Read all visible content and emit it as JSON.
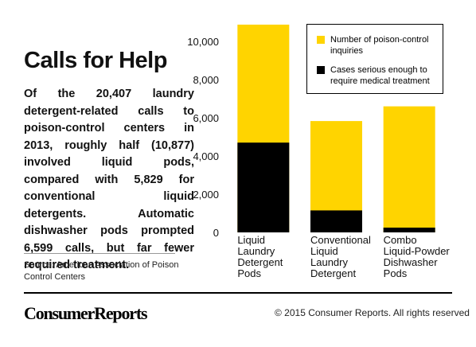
{
  "chart_data": {
    "type": "bar",
    "title": "Calls for Help",
    "description": "Of the 20,407 laundry detergent-related calls to poison-control centers in 2013, roughly half (10,877) involved liquid pods, compared with 5,829 for conventional liquid detergents. Automatic dishwasher pods prompted 6,599 calls, but far fewer required treatment.",
    "source": "Source: American Association of Poison Control Centers",
    "categories": [
      "Liquid Laundry Detergent Pods",
      "Conventional Liquid Laundry Detergent",
      "Combo Liquid-Powder Dishwasher Pods"
    ],
    "series": [
      {
        "name": "Number of poison-control inquiries",
        "color": "#ffd400",
        "values": [
          10877,
          5829,
          6599
        ]
      },
      {
        "name": "Cases serious enough to require medical treatment",
        "color": "#000000",
        "values": [
          4700,
          1150,
          250
        ]
      }
    ],
    "ylim": [
      0,
      11000
    ],
    "yticks": [
      0,
      {
        "value": 2000,
        "label": "2,000"
      },
      {
        "value": 4000,
        "label": "4,000"
      },
      {
        "value": 6000,
        "label": "6,000"
      },
      {
        "value": 8000,
        "label": "8,000"
      },
      {
        "value": 10000,
        "label": "10,000"
      }
    ],
    "grid": false,
    "legend": "top-right"
  },
  "footer": {
    "logo": "ConsumerReports",
    "copyright": "© 2015 Consumer Reports. All rights reserved"
  }
}
